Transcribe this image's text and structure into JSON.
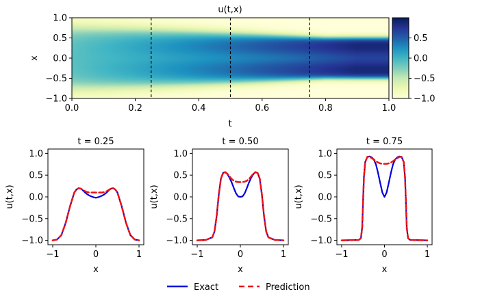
{
  "chart_data": [
    {
      "type": "heatmap",
      "title": "u(t,x)",
      "xlabel": "t",
      "ylabel": "x",
      "xlim": [
        0,
        1
      ],
      "ylim": [
        -1,
        1
      ],
      "xticks": [
        "0.0",
        "0.2",
        "0.4",
        "0.6",
        "0.8",
        "1.0"
      ],
      "yticks": [
        "1.0",
        "0.5",
        "0.0",
        "−0.5",
        "−1.0"
      ],
      "vertical_lines": [
        0.25,
        0.5,
        0.75
      ],
      "colorbar": {
        "colormap": "YlGnBu",
        "range": [
          -1,
          1
        ],
        "ticks": [
          "0.5",
          "0.0",
          "−0.5",
          "−1.0"
        ]
      }
    },
    {
      "type": "line",
      "title": "t = 0.25",
      "xlabel": "x",
      "ylabel": "u(t,x)",
      "xlim": [
        -1,
        1
      ],
      "ylim": [
        -1.1,
        1.1
      ],
      "xticks": [
        "−1",
        "0",
        "1"
      ],
      "yticks": [
        "1.0",
        "0.5",
        "0.0",
        "−0.5",
        "−1.0"
      ],
      "series": [
        {
          "name": "Exact",
          "x": [
            -1.0,
            -0.9,
            -0.8,
            -0.7,
            -0.6,
            -0.5,
            -0.45,
            -0.4,
            -0.35,
            -0.3,
            -0.25,
            -0.2,
            -0.15,
            -0.1,
            -0.05,
            0.0,
            0.05,
            0.1,
            0.15,
            0.2,
            0.25,
            0.3,
            0.35,
            0.4,
            0.45,
            0.5,
            0.6,
            0.7,
            0.8,
            0.9,
            1.0
          ],
          "y": [
            -1.0,
            -0.98,
            -0.88,
            -0.6,
            -0.22,
            0.1,
            0.17,
            0.2,
            0.19,
            0.15,
            0.1,
            0.06,
            0.03,
            0.01,
            -0.01,
            -0.02,
            -0.01,
            0.01,
            0.03,
            0.06,
            0.1,
            0.15,
            0.19,
            0.2,
            0.17,
            0.1,
            -0.22,
            -0.6,
            -0.88,
            -0.98,
            -1.0
          ]
        },
        {
          "name": "Prediction",
          "x": [
            -1.0,
            -0.9,
            -0.8,
            -0.7,
            -0.6,
            -0.5,
            -0.45,
            -0.4,
            -0.35,
            -0.3,
            -0.25,
            -0.2,
            -0.15,
            -0.1,
            -0.05,
            0.0,
            0.05,
            0.1,
            0.15,
            0.2,
            0.25,
            0.3,
            0.35,
            0.4,
            0.45,
            0.5,
            0.6,
            0.7,
            0.8,
            0.9,
            1.0
          ],
          "y": [
            -1.0,
            -0.98,
            -0.88,
            -0.6,
            -0.22,
            0.1,
            0.17,
            0.2,
            0.19,
            0.16,
            0.13,
            0.11,
            0.1,
            0.1,
            0.1,
            0.1,
            0.1,
            0.1,
            0.1,
            0.11,
            0.13,
            0.16,
            0.19,
            0.2,
            0.17,
            0.1,
            -0.22,
            -0.6,
            -0.88,
            -0.98,
            -1.0
          ]
        }
      ]
    },
    {
      "type": "line",
      "title": "t = 0.50",
      "xlabel": "x",
      "ylabel": "u(t,x)",
      "xlim": [
        -1,
        1
      ],
      "ylim": [
        -1.1,
        1.1
      ],
      "xticks": [
        "−1",
        "0",
        "1"
      ],
      "yticks": [
        "1.0",
        "0.5",
        "0.0",
        "−0.5",
        "−1.0"
      ],
      "series": [
        {
          "name": "Exact",
          "x": [
            -1.0,
            -0.8,
            -0.65,
            -0.6,
            -0.55,
            -0.5,
            -0.45,
            -0.4,
            -0.35,
            -0.3,
            -0.25,
            -0.2,
            -0.15,
            -0.1,
            -0.05,
            0.0,
            0.05,
            0.1,
            0.15,
            0.2,
            0.25,
            0.3,
            0.35,
            0.4,
            0.45,
            0.5,
            0.55,
            0.6,
            0.65,
            0.8,
            1.0
          ],
          "y": [
            -1.0,
            -0.99,
            -0.93,
            -0.8,
            -0.45,
            0.05,
            0.42,
            0.55,
            0.57,
            0.52,
            0.44,
            0.33,
            0.2,
            0.08,
            0.01,
            0.0,
            0.01,
            0.08,
            0.2,
            0.33,
            0.44,
            0.52,
            0.57,
            0.55,
            0.42,
            0.05,
            -0.45,
            -0.8,
            -0.93,
            -0.99,
            -1.0
          ]
        },
        {
          "name": "Prediction",
          "x": [
            -1.0,
            -0.8,
            -0.65,
            -0.6,
            -0.55,
            -0.5,
            -0.45,
            -0.4,
            -0.35,
            -0.3,
            -0.25,
            -0.2,
            -0.15,
            -0.1,
            -0.05,
            0.0,
            0.05,
            0.1,
            0.15,
            0.2,
            0.25,
            0.3,
            0.35,
            0.4,
            0.45,
            0.5,
            0.55,
            0.6,
            0.65,
            0.8,
            1.0
          ],
          "y": [
            -1.0,
            -0.99,
            -0.93,
            -0.8,
            -0.45,
            0.05,
            0.42,
            0.55,
            0.57,
            0.53,
            0.47,
            0.41,
            0.37,
            0.35,
            0.34,
            0.34,
            0.34,
            0.35,
            0.37,
            0.41,
            0.47,
            0.53,
            0.57,
            0.55,
            0.42,
            0.05,
            -0.45,
            -0.8,
            -0.93,
            -0.99,
            -1.0
          ]
        }
      ]
    },
    {
      "type": "line",
      "title": "t = 0.75",
      "xlabel": "x",
      "ylabel": "u(t,x)",
      "xlim": [
        -1,
        1
      ],
      "ylim": [
        -1.1,
        1.1
      ],
      "xticks": [
        "−1",
        "0",
        "1"
      ],
      "yticks": [
        "1.0",
        "0.5",
        "0.0",
        "−0.5",
        "−1.0"
      ],
      "series": [
        {
          "name": "Exact",
          "x": [
            -1.0,
            -0.6,
            -0.55,
            -0.52,
            -0.5,
            -0.48,
            -0.45,
            -0.4,
            -0.35,
            -0.3,
            -0.25,
            -0.2,
            -0.15,
            -0.1,
            -0.05,
            0.0,
            0.05,
            0.1,
            0.15,
            0.2,
            0.25,
            0.3,
            0.35,
            0.4,
            0.45,
            0.48,
            0.5,
            0.52,
            0.55,
            0.6,
            1.0
          ],
          "y": [
            -1.0,
            -0.99,
            -0.95,
            -0.7,
            -0.1,
            0.45,
            0.8,
            0.92,
            0.93,
            0.91,
            0.86,
            0.75,
            0.55,
            0.32,
            0.1,
            0.0,
            0.1,
            0.32,
            0.55,
            0.75,
            0.86,
            0.91,
            0.93,
            0.92,
            0.8,
            0.45,
            -0.1,
            -0.7,
            -0.95,
            -0.99,
            -1.0
          ]
        },
        {
          "name": "Prediction",
          "x": [
            -1.0,
            -0.6,
            -0.55,
            -0.52,
            -0.5,
            -0.48,
            -0.45,
            -0.4,
            -0.35,
            -0.3,
            -0.25,
            -0.2,
            -0.15,
            -0.1,
            -0.05,
            0.0,
            0.05,
            0.1,
            0.15,
            0.2,
            0.25,
            0.3,
            0.35,
            0.4,
            0.45,
            0.48,
            0.5,
            0.52,
            0.55,
            0.6,
            1.0
          ],
          "y": [
            -1.0,
            -0.99,
            -0.95,
            -0.7,
            -0.1,
            0.45,
            0.8,
            0.92,
            0.92,
            0.89,
            0.86,
            0.82,
            0.79,
            0.77,
            0.76,
            0.76,
            0.76,
            0.77,
            0.79,
            0.82,
            0.86,
            0.89,
            0.92,
            0.92,
            0.8,
            0.45,
            -0.1,
            -0.7,
            -0.95,
            -0.99,
            -1.0
          ]
        }
      ]
    }
  ],
  "legend": {
    "placement": "bottom-center",
    "entries": [
      {
        "label": "Exact",
        "color": "#0000dd",
        "style": "solid"
      },
      {
        "label": "Prediction",
        "color": "#ee1111",
        "style": "dashed"
      }
    ]
  }
}
